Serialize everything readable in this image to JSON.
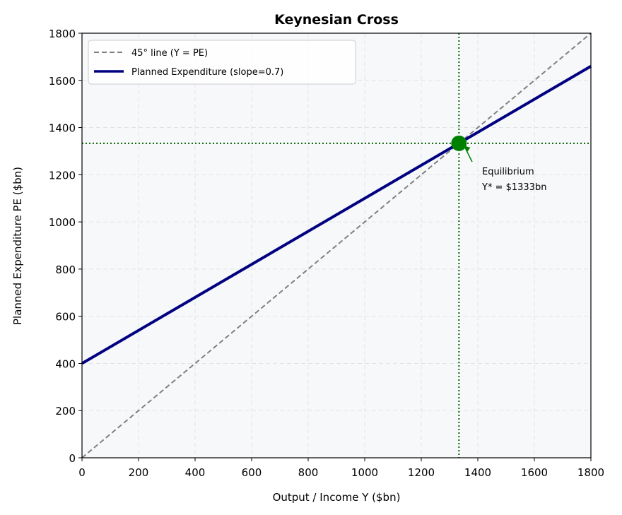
{
  "chart_data": {
    "type": "line",
    "title": "Keynesian Cross",
    "xlabel": "Output / Income Y ($bn)",
    "ylabel": "Planned Expenditure PE ($bn)",
    "xlim": [
      0,
      1800
    ],
    "ylim": [
      0,
      1800
    ],
    "xticks": [
      0,
      200,
      400,
      600,
      800,
      1000,
      1200,
      1400,
      1600,
      1800
    ],
    "yticks": [
      0,
      200,
      400,
      600,
      800,
      1000,
      1200,
      1400,
      1600,
      1800
    ],
    "grid": true,
    "legend_position": "top-left",
    "series": [
      {
        "name": "45° line (Y = PE)",
        "x": [
          0,
          1800
        ],
        "y": [
          0,
          1800
        ],
        "color": "#808080",
        "style": "dashed"
      },
      {
        "name": "Planned Expenditure (slope=0.7)",
        "x": [
          0,
          1800
        ],
        "y": [
          400,
          1660
        ],
        "color": "#000080",
        "style": "solid"
      }
    ],
    "equilibrium": {
      "x": 1333.33,
      "y": 1333.33,
      "color": "#008000",
      "label_line1": "Equilibrium",
      "label_line2": "Y* = $1333bn"
    },
    "background_color": "#f7f8fa"
  }
}
